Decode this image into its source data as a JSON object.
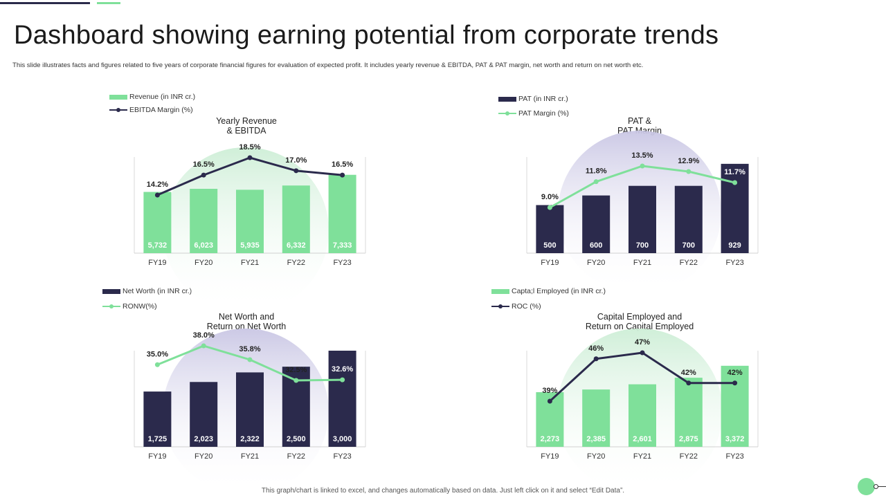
{
  "header": {
    "title": "Dashboard showing earning potential from corporate trends",
    "subtitle": "This slide illustrates facts and figures related to five years of corporate financial figures for evaluation of expected profit. It includes yearly revenue & EBITDA,  PAT & PAT margin,  net worth and return on net worth etc."
  },
  "footer": {
    "note": "This graph/chart is linked to excel, and changes automatically based on data. Just left click on it and select “Edit Data”."
  },
  "colors": {
    "green": "#7fe09a",
    "navy": "#2b2a4c",
    "green_glow": "#dff5e5",
    "purple_glow": "#d6d4ec"
  },
  "chart_data": [
    {
      "type": "bar",
      "title": "Yearly Revenue & EBITDA",
      "title_lines": [
        "Yearly Revenue",
        "& EBITDA"
      ],
      "categories": [
        "FY19",
        "FY20",
        "FY21",
        "FY22",
        "FY23"
      ],
      "bar_series": {
        "name": "Revenue (in INR cr.)",
        "values": [
          5732,
          6023,
          5935,
          6332,
          7333
        ],
        "labels": [
          "5,732",
          "6,023",
          "5,935",
          "6,332",
          "7,333"
        ]
      },
      "line_series": {
        "name": "EBITDA Margin (%)",
        "values": [
          14.2,
          16.5,
          18.5,
          17.0,
          16.5
        ],
        "labels": [
          "14.2%",
          "16.5%",
          "18.5%",
          "17.0%",
          "16.5%"
        ]
      },
      "bar_color": "green",
      "line_color": "navy",
      "glow": "green_glow",
      "ylim_bar": [
        0,
        9000
      ],
      "ylim_line": [
        0,
        30
      ]
    },
    {
      "type": "bar",
      "title": "PAT & PAT Margin",
      "title_lines": [
        "PAT &",
        "PAT Margin"
      ],
      "categories": [
        "FY19",
        "FY20",
        "FY21",
        "FY22",
        "FY23"
      ],
      "bar_series": {
        "name": "PAT (in INR cr.)",
        "values": [
          500,
          600,
          700,
          700,
          929
        ],
        "labels": [
          "500",
          "600",
          "700",
          "700",
          "929"
        ]
      },
      "line_series": {
        "name": "PAT Margin (%)",
        "values": [
          9.0,
          11.8,
          13.5,
          12.9,
          11.7
        ],
        "labels": [
          "9.0%",
          "11.8%",
          "13.5%",
          "12.9%",
          "11.7%"
        ]
      },
      "bar_color": "navy",
      "line_color": "green",
      "glow": "purple_glow",
      "ylim_bar": [
        0,
        1000
      ],
      "ylim_line": [
        0,
        20
      ]
    },
    {
      "type": "bar",
      "title": "Net Worth and Return on Net Worth",
      "title_lines": [
        "Net Worth and",
        "Return on Net Worth"
      ],
      "categories": [
        "FY19",
        "FY20",
        "FY21",
        "FY22",
        "FY23"
      ],
      "bar_series": {
        "name": "Net Worth (in INR cr.)",
        "values": [
          1725,
          2023,
          2322,
          2500,
          3000
        ],
        "labels": [
          "1,725",
          "2,023",
          "2,322",
          "2,500",
          "3,000"
        ]
      },
      "line_series": {
        "name": "RONW(%)",
        "values": [
          35.0,
          38.0,
          35.8,
          32.5,
          32.6
        ],
        "labels": [
          "35.0%",
          "38.0%",
          "35.8%",
          "32.5%",
          "32.6%"
        ]
      },
      "bar_color": "navy",
      "line_color": "green",
      "glow": "purple_glow",
      "ylim_bar": [
        0,
        3000
      ],
      "ylim_line": [
        0,
        60
      ]
    },
    {
      "type": "bar",
      "title": "Capital Employed and Return on Capital Employed",
      "title_lines": [
        "Capital Employed and",
        "Return on Capital Employed"
      ],
      "categories": [
        "FY19",
        "FY20",
        "FY21",
        "FY22",
        "FY23"
      ],
      "bar_series": {
        "name": "Capta;l Employed (in INR cr.)",
        "values": [
          2273,
          2385,
          2601,
          2875,
          3372
        ],
        "labels": [
          "2,273",
          "2,385",
          "2,601",
          "2,875",
          "3,372"
        ]
      },
      "line_series": {
        "name": "ROC (%)",
        "values": [
          39,
          46,
          47,
          42,
          42
        ],
        "labels": [
          "39%",
          "46%",
          "47%",
          "42%",
          "42%"
        ]
      },
      "bar_color": "green",
      "line_color": "navy",
      "glow": "green_glow",
      "ylim_bar": [
        0,
        4000
      ],
      "ylim_line": [
        0,
        75
      ]
    }
  ]
}
